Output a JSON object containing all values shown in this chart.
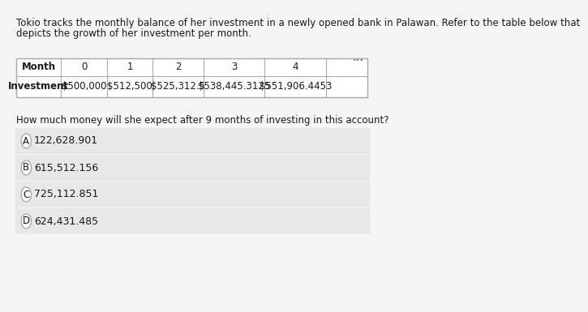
{
  "title_line1": "Tokio tracks the monthly balance of her investment in a newly opened bank in Palawan. Refer to the table below that",
  "title_line2": "depicts the growth of her investment per month.",
  "table_headers": [
    "Month",
    "0",
    "1",
    "2",
    "3",
    "4"
  ],
  "table_row_label": "Investment",
  "table_values": [
    "$500,000",
    "$512,500",
    "$525,312.5",
    "$538,445.3125",
    "$551,906.4453"
  ],
  "question": "How much money will she expect after 9 months of investing in this account?",
  "options": [
    {
      "label": "A",
      "text": "122,628.901"
    },
    {
      "label": "B",
      "text": "615,512.156"
    },
    {
      "label": "C",
      "text": "725,112.851"
    },
    {
      "label": "D",
      "text": "624,431.485"
    }
  ],
  "bg_color": "#f5f5f5",
  "table_bg": "#ffffff",
  "option_bg": "#e8e8e8",
  "text_color": "#1a1a1a",
  "dots_color": "#888888",
  "font_size_title": 8.5,
  "font_size_table": 8.5,
  "font_size_question": 8.5,
  "font_size_options": 9.0
}
